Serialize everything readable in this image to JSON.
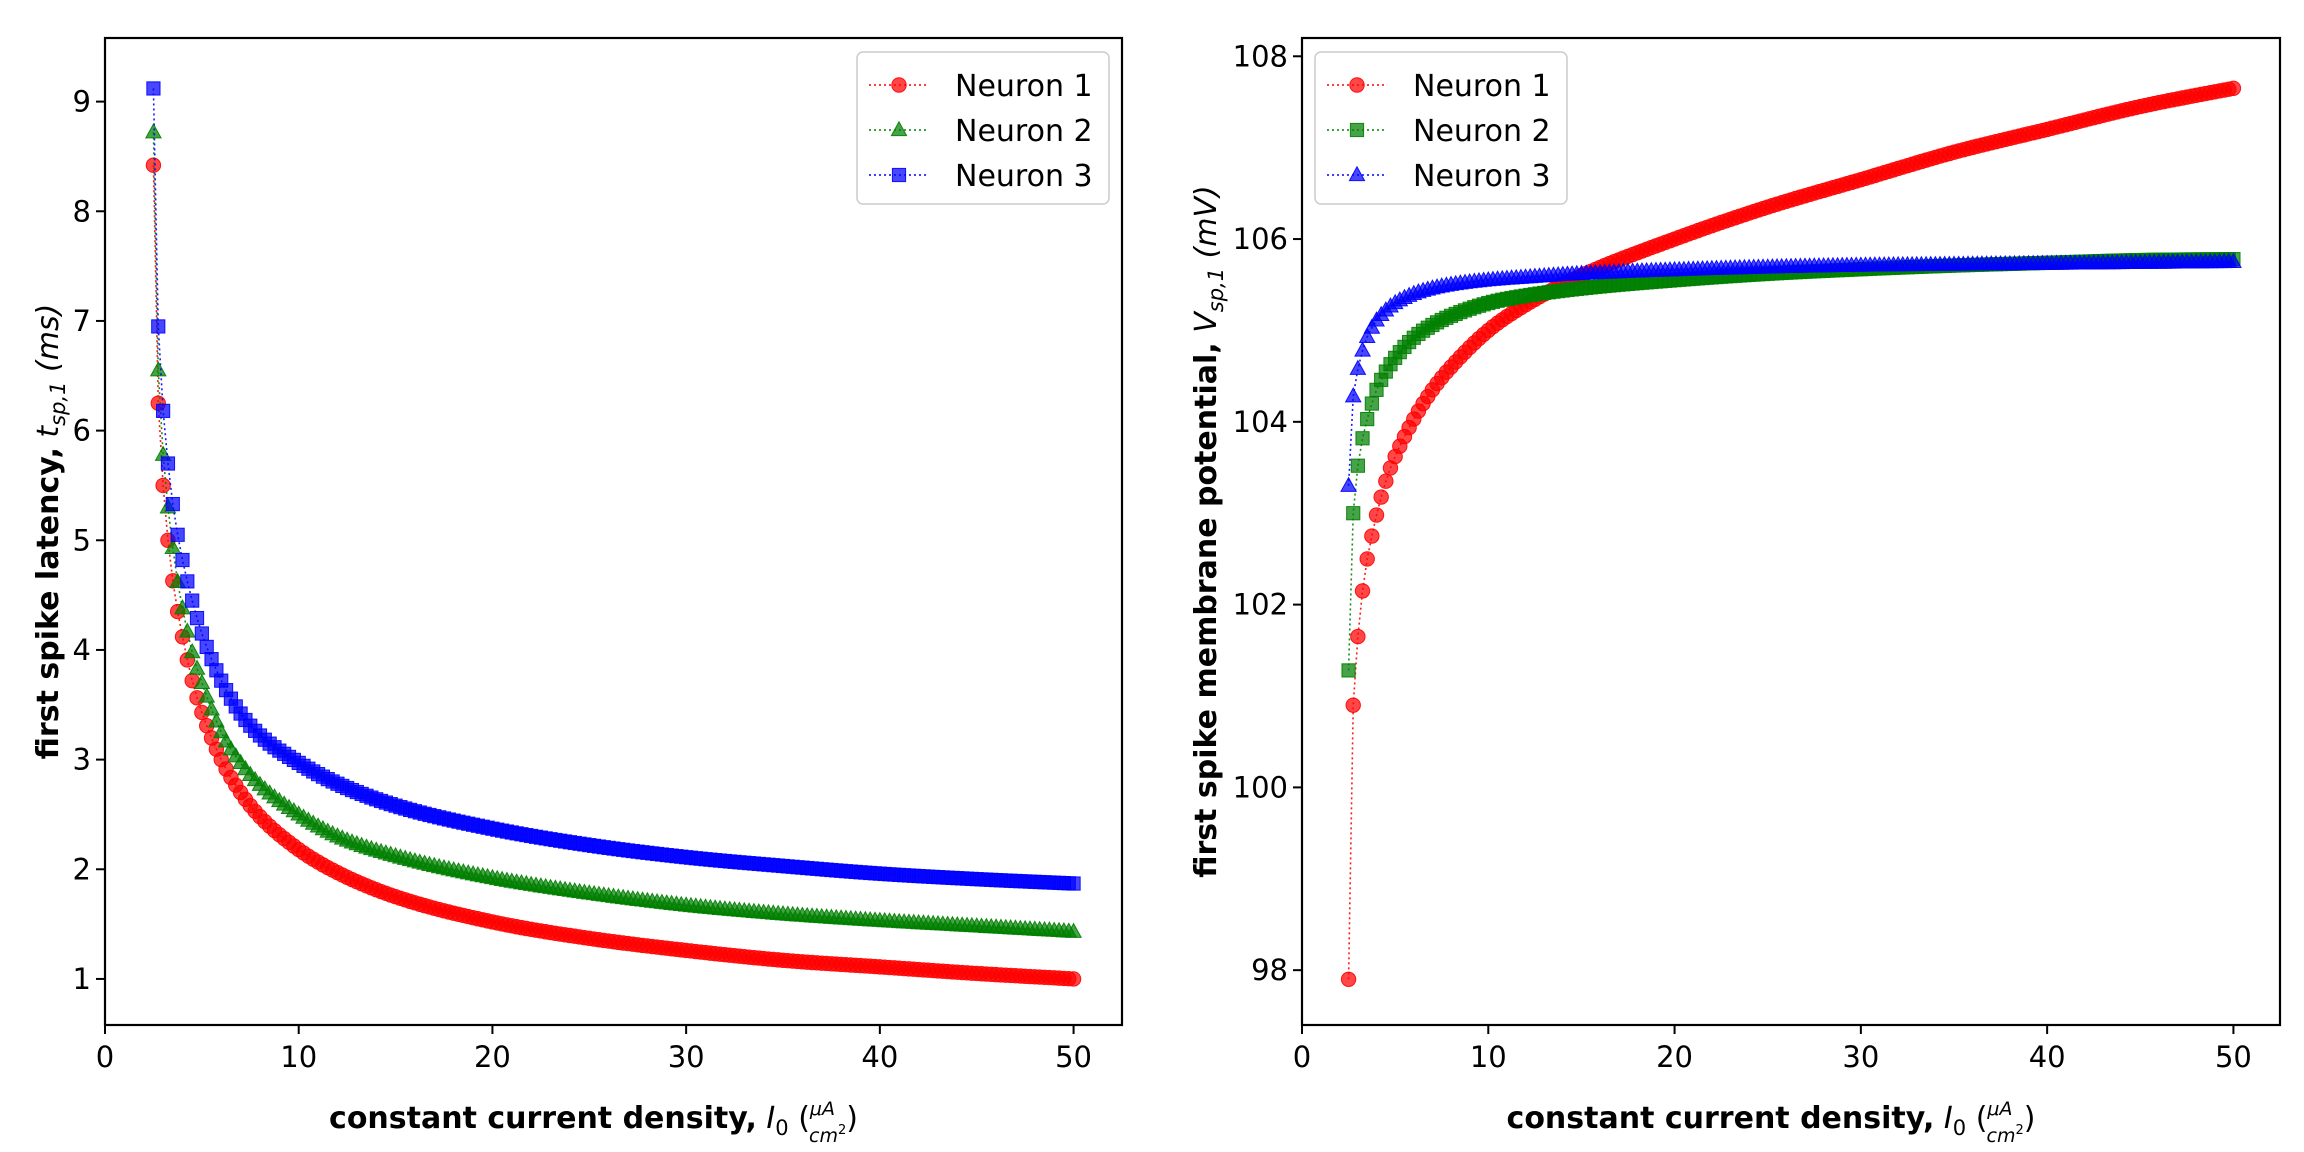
{
  "chart_data": [
    {
      "type": "scatter",
      "xlabel": {
        "bold": "constant current density,",
        "math_base": "I",
        "math_sub": "0",
        "frac_num": "μA",
        "frac_den": "cm",
        "frac_den_sup": "2"
      },
      "ylabel": {
        "bold": "first spike latency,",
        "math_base": "t",
        "math_sub": "sp,1",
        "unit": "(ms)"
      },
      "xlim": [
        0,
        52.5
      ],
      "ylim": [
        0.58,
        9.58
      ],
      "xticks": [
        0,
        10,
        20,
        30,
        40,
        50
      ],
      "yticks": [
        1,
        2,
        3,
        4,
        5,
        6,
        7,
        8,
        9
      ],
      "legend_position": "top-right",
      "line_style": "dotted",
      "x_range": [
        2.5,
        50
      ],
      "series": [
        {
          "name": "Neuron 1",
          "color": "#ff0000",
          "marker": "circle",
          "x": [
            2.5,
            2.75,
            3,
            3.25,
            3.5,
            3.75,
            4,
            4.5,
            5,
            6,
            7,
            8,
            10,
            12,
            15,
            20,
            25,
            30,
            35,
            40,
            45,
            50
          ],
          "y": [
            8.42,
            6.25,
            5.5,
            5.0,
            4.63,
            4.35,
            4.12,
            3.72,
            3.43,
            3.0,
            2.7,
            2.48,
            2.18,
            1.97,
            1.75,
            1.52,
            1.37,
            1.26,
            1.17,
            1.11,
            1.05,
            1.0
          ]
        },
        {
          "name": "Neuron 2",
          "color": "#008000",
          "marker": "triangle",
          "x": [
            2.5,
            2.75,
            3,
            3.25,
            3.5,
            3.75,
            4,
            4.5,
            5,
            6,
            7,
            8,
            10,
            12,
            15,
            20,
            25,
            30,
            35,
            40,
            45,
            50
          ],
          "y": [
            8.72,
            6.55,
            5.78,
            5.3,
            4.93,
            4.62,
            4.38,
            3.98,
            3.7,
            3.25,
            2.97,
            2.77,
            2.5,
            2.3,
            2.12,
            1.92,
            1.78,
            1.67,
            1.59,
            1.53,
            1.48,
            1.43
          ]
        },
        {
          "name": "Neuron 3",
          "color": "#0000ff",
          "marker": "square",
          "x": [
            2.5,
            2.75,
            3,
            3.25,
            3.5,
            3.75,
            4,
            4.5,
            5,
            6,
            7,
            8,
            10,
            12,
            15,
            20,
            25,
            30,
            35,
            40,
            45,
            50
          ],
          "y": [
            9.12,
            6.95,
            6.18,
            5.7,
            5.33,
            5.05,
            4.82,
            4.45,
            4.15,
            3.72,
            3.42,
            3.22,
            2.97,
            2.78,
            2.58,
            2.37,
            2.22,
            2.11,
            2.03,
            1.96,
            1.91,
            1.87
          ]
        }
      ]
    },
    {
      "type": "scatter",
      "xlabel": {
        "bold": "constant current density,",
        "math_base": "I",
        "math_sub": "0",
        "frac_num": "μA",
        "frac_den": "cm",
        "frac_den_sup": "2"
      },
      "ylabel": {
        "bold": "first spike membrane potential,",
        "math_base": "V",
        "math_sub": "sp,1",
        "unit": "(mV)"
      },
      "xlim": [
        0,
        52.5
      ],
      "ylim": [
        97.4,
        108.2
      ],
      "xticks": [
        0,
        10,
        20,
        30,
        40,
        50
      ],
      "yticks": [
        98,
        100,
        102,
        104,
        106,
        108
      ],
      "legend_position": "top-left",
      "line_style": "dotted",
      "x_range": [
        2.5,
        50
      ],
      "series": [
        {
          "name": "Neuron 1",
          "color": "#ff0000",
          "marker": "circle",
          "x": [
            2.5,
            2.75,
            3,
            3.25,
            3.5,
            3.75,
            4,
            4.5,
            5,
            6,
            7,
            8,
            10,
            12,
            15,
            20,
            25,
            30,
            35,
            40,
            45,
            50
          ],
          "y": [
            97.9,
            100.9,
            101.65,
            102.15,
            102.5,
            102.75,
            102.98,
            103.35,
            103.62,
            104.03,
            104.35,
            104.6,
            105.0,
            105.28,
            105.6,
            106.0,
            106.35,
            106.65,
            106.95,
            107.2,
            107.45,
            107.65
          ]
        },
        {
          "name": "Neuron 2",
          "color": "#008000",
          "marker": "square",
          "x": [
            2.5,
            2.75,
            3,
            3.25,
            3.5,
            3.75,
            4,
            4.5,
            5,
            6,
            7,
            8,
            10,
            12,
            15,
            20,
            25,
            30,
            35,
            40,
            45,
            50
          ],
          "y": [
            101.28,
            103.0,
            103.52,
            103.82,
            104.03,
            104.2,
            104.35,
            104.55,
            104.7,
            104.92,
            105.06,
            105.16,
            105.3,
            105.38,
            105.46,
            105.55,
            105.62,
            105.67,
            105.71,
            105.74,
            105.77,
            105.78
          ]
        },
        {
          "name": "Neuron 3",
          "color": "#0000ff",
          "marker": "triangle",
          "x": [
            2.5,
            2.75,
            3,
            3.25,
            3.5,
            3.75,
            4,
            4.5,
            5,
            6,
            7,
            8,
            10,
            12,
            15,
            20,
            25,
            30,
            35,
            40,
            45,
            50
          ],
          "y": [
            103.3,
            104.28,
            104.58,
            104.78,
            104.93,
            105.03,
            105.11,
            105.22,
            105.3,
            105.4,
            105.46,
            105.5,
            105.55,
            105.58,
            105.62,
            105.66,
            105.69,
            105.71,
            105.72,
            105.73,
            105.74,
            105.75
          ]
        }
      ]
    }
  ]
}
